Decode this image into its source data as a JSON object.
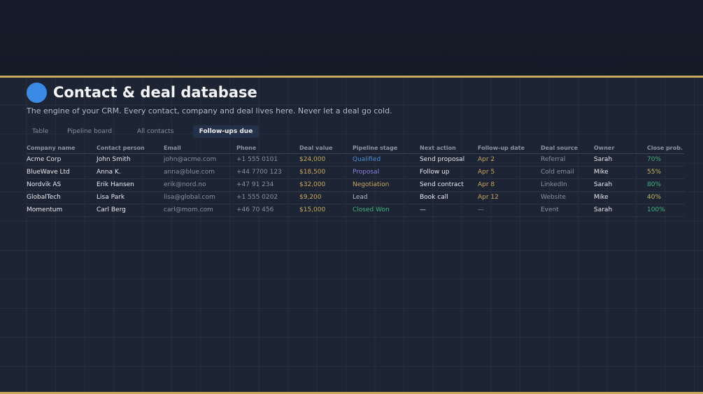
{
  "header": {
    "title": "Contact & deal database",
    "subtitle": "The engine of your CRM. Every contact, company and deal lives here. Never let a deal go cold."
  },
  "tabs": [
    {
      "label": "Table"
    },
    {
      "label": "Pipeline board"
    },
    {
      "label": "All contacts"
    },
    {
      "label": "Follow-ups due",
      "active": true
    }
  ],
  "table": {
    "columns": [
      "Company name",
      "Contact person",
      "Email",
      "Phone",
      "Deal value",
      "Pipeline stage",
      "Next action",
      "Follow-up date",
      "Deal source",
      "Owner",
      "Close prob."
    ],
    "rows": [
      [
        "Acme Corp",
        "John Smith",
        "john@acme.com",
        "+1 555 0101",
        "$24,000",
        "Qualified",
        "Send proposal",
        "Apr 2",
        "Referral",
        "Sarah",
        "70%"
      ],
      [
        "BlueWave Ltd",
        "Anna K.",
        "anna@blue.com",
        "+44 7700 123",
        "$18,500",
        "Proposal",
        "Follow up",
        "Apr 5",
        "Cold email",
        "Mike",
        "55%"
      ],
      [
        "Nordvik AS",
        "Erik Hansen",
        "erik@nord.no",
        "+47 91 234",
        "$32,000",
        "Negotiation",
        "Send contract",
        "Apr 8",
        "LinkedIn",
        "Sarah",
        "80%"
      ],
      [
        "GlobalTech",
        "Lisa Park",
        "lisa@global.com",
        "+1 555 0202",
        "$9,200",
        "Lead",
        "Book call",
        "Apr 12",
        "Website",
        "Mike",
        "40%"
      ],
      [
        "Momentum",
        "Carl Berg",
        "carl@mom.com",
        "+46 70 456",
        "$15,000",
        "Closed Won",
        "—",
        "—",
        "Event",
        "Sarah",
        "100%"
      ]
    ]
  },
  "colors": {
    "accent": "#3b8ae6",
    "gold": "#c9a75c",
    "stage": {
      "Qualified": "#4a90d9",
      "Proposal": "#8a7fe0",
      "Negotiation": "#c9a75c",
      "Lead": "#b5bac5",
      "Closed Won": "#3fb37f"
    }
  }
}
